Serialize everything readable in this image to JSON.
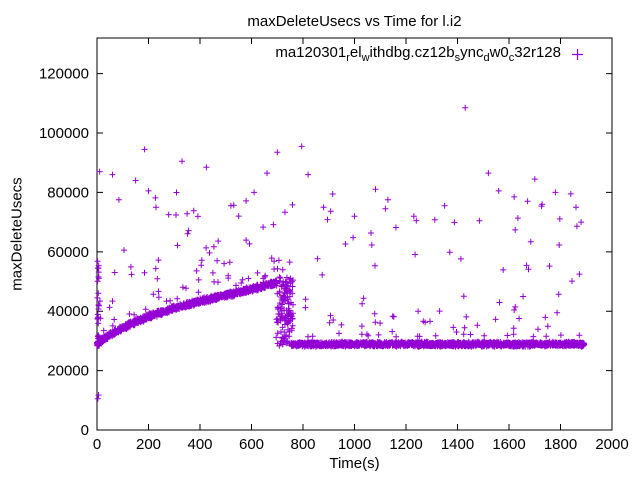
{
  "chart_data": {
    "type": "scatter",
    "title": "maxDeleteUsecs vs Time for l.i2",
    "xlabel": "Time(s)",
    "ylabel": "maxDeleteUsecs",
    "xlim": [
      0,
      2000
    ],
    "ylim": [
      0,
      132000
    ],
    "xticks": [
      0,
      200,
      400,
      600,
      800,
      1000,
      1200,
      1400,
      1600,
      1800,
      2000
    ],
    "yticks": [
      0,
      20000,
      40000,
      60000,
      80000,
      100000,
      120000
    ],
    "grid": false,
    "marker": {
      "shape": "plus",
      "color": "#9400d3",
      "size": 7
    },
    "legend": {
      "position": "top-right-inside",
      "label_plain": "ma120301_rel_withdbg.cz12b_sync_dw0_c32r128",
      "label_segments": [
        {
          "t": "ma120301"
        },
        {
          "s": "r"
        },
        {
          "t": "el"
        },
        {
          "s": "w"
        },
        {
          "t": "ithdbg.cz12b"
        },
        {
          "s": "s"
        },
        {
          "t": "ync"
        },
        {
          "s": "d"
        },
        {
          "t": "w0"
        },
        {
          "s": "c"
        },
        {
          "t": "32r128"
        }
      ]
    },
    "pattern_summary": "Dense band starts near y=29000 at x=0, rises to about 50000 by x=700, drops sharply around x=700-760, then stays flat near 29000 through x=1890; scattered outliers from 55000 up to about 108500.",
    "generator": {
      "seed": 7,
      "rise_trend": [
        [
          0,
          28800
        ],
        [
          40,
          31500
        ],
        [
          80,
          33500
        ],
        [
          120,
          35200
        ],
        [
          160,
          36800
        ],
        [
          200,
          38200
        ],
        [
          240,
          39400
        ],
        [
          300,
          41000
        ],
        [
          360,
          42400
        ],
        [
          420,
          43800
        ],
        [
          480,
          45000
        ],
        [
          540,
          46200
        ],
        [
          600,
          47400
        ],
        [
          650,
          48600
        ],
        [
          700,
          49800
        ]
      ],
      "rise": {
        "x0": 0,
        "x1": 700,
        "count": 1250,
        "jitter": 900
      },
      "flat": {
        "x0": 755,
        "x1": 1892,
        "count": 2100,
        "y": 28900,
        "jitter": 750
      },
      "transition": {
        "x0": 695,
        "x1": 762,
        "count": 130,
        "ymin": 28300,
        "ymax": 51500
      },
      "left_stripe": {
        "x": 1,
        "xjitter": 7,
        "count": 26,
        "ymin": 28000,
        "ymax": 57000
      },
      "mid_scatter": {
        "count": 175,
        "x0": 0,
        "x1": 1892,
        "ymin_offset": 2500,
        "ymax": 82000,
        "bias": 2.2
      }
    },
    "outliers": [
      [
        3,
        10500
      ],
      [
        6,
        11800
      ],
      [
        10,
        87000
      ],
      [
        60,
        86000
      ],
      [
        85,
        77500
      ],
      [
        150,
        84000
      ],
      [
        185,
        94500
      ],
      [
        200,
        80500
      ],
      [
        330,
        90500
      ],
      [
        425,
        88500
      ],
      [
        520,
        75500
      ],
      [
        610,
        80000
      ],
      [
        660,
        86500
      ],
      [
        700,
        93500
      ],
      [
        795,
        95500
      ],
      [
        820,
        86000
      ],
      [
        880,
        75000
      ],
      [
        1000,
        72000
      ],
      [
        1120,
        74500
      ],
      [
        1240,
        70500
      ],
      [
        1350,
        75500
      ],
      [
        1430,
        108500
      ],
      [
        1520,
        86500
      ],
      [
        1560,
        80500
      ],
      [
        1620,
        78500
      ],
      [
        1700,
        84500
      ],
      [
        1780,
        80000
      ],
      [
        1840,
        79500
      ],
      [
        1860,
        75000
      ],
      [
        1880,
        70000
      ]
    ]
  }
}
